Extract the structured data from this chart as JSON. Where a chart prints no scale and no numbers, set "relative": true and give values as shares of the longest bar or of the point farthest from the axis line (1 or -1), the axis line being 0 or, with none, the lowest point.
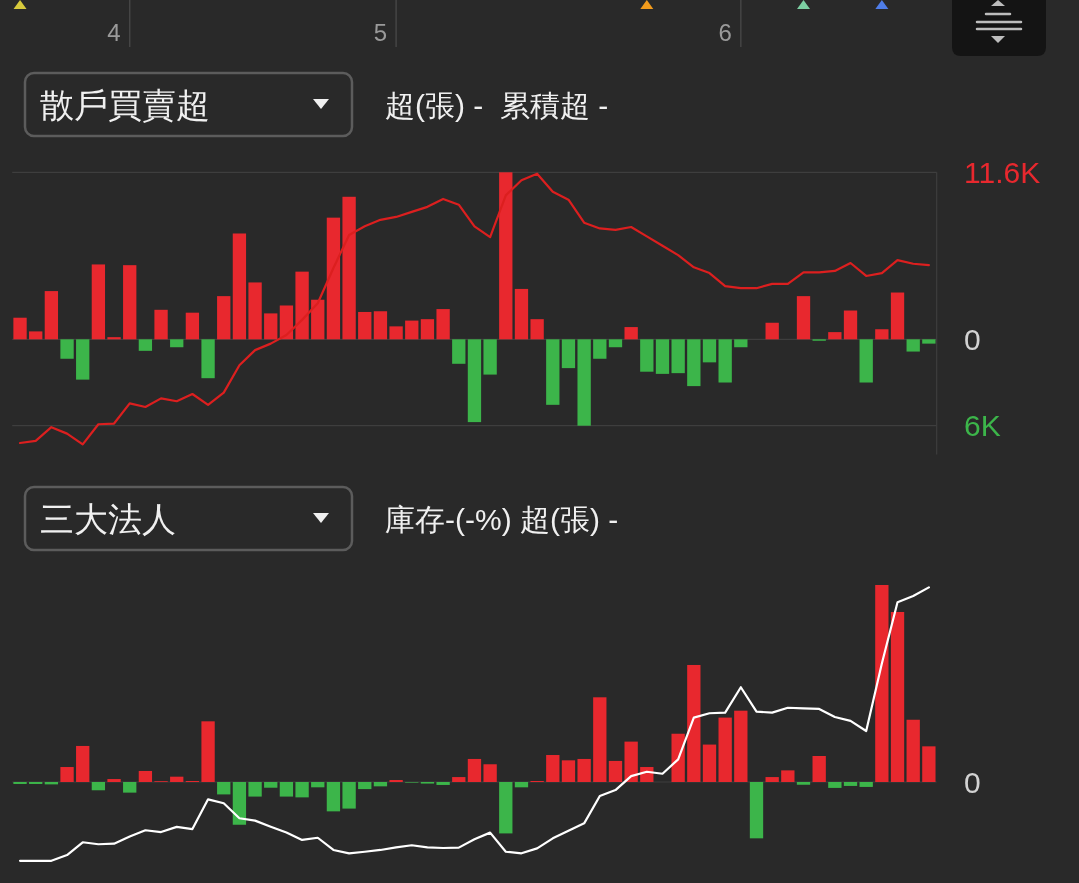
{
  "chart_data": [
    {
      "type": "bar",
      "title": "散戶買賣超",
      "subtitle": "超(張) -  累積超 -",
      "ylim": [
        -8000,
        11600
      ],
      "yticks": [
        {
          "value": 11600,
          "label": "11.6K"
        },
        0,
        {
          "value": -6000,
          "label": "6K"
        }
      ],
      "grid": "y",
      "categories": [
        null,
        null,
        null,
        null,
        null,
        null,
        "4",
        null,
        null,
        null,
        null,
        null,
        null,
        null,
        null,
        null,
        null,
        null,
        null,
        null,
        null,
        null,
        null,
        "5",
        null,
        null,
        null,
        null,
        null,
        null,
        null,
        null,
        null,
        null,
        null,
        null,
        null,
        null,
        null,
        null,
        null,
        null,
        null,
        null,
        null,
        "6",
        null,
        null,
        null,
        null,
        null,
        null,
        null,
        null,
        null,
        null,
        null,
        null,
        null
      ],
      "series": [
        {
          "values": [
            1500,
            550,
            3350,
            -1350,
            -2800,
            5200,
            150,
            5150,
            -800,
            2050,
            -550,
            1850,
            -2700,
            3000,
            7350,
            3950,
            1800,
            2350,
            4700,
            2750,
            8450,
            9900,
            1900,
            1950,
            900,
            1300,
            1400,
            2100,
            -1700,
            -5750,
            -2450,
            11600,
            3500,
            1400,
            -4550,
            -2000,
            -6000,
            -1350,
            -550,
            850,
            -2250,
            -2400,
            -2350,
            -3250,
            -1600,
            -3000,
            -550,
            null,
            1150,
            null,
            3000,
            -100,
            500,
            2000,
            -3000,
            700,
            3250,
            -850,
            -300
          ],
          "colors": [
            "#e8282e",
            "#e8282e",
            "#e8282e",
            "#3cb54a",
            "#3cb54a",
            "#e8282e",
            "#e8282e",
            "#e8282e",
            "#3cb54a",
            "#e8282e",
            "#3cb54a",
            "#e8282e",
            "#3cb54a",
            "#e8282e",
            "#e8282e",
            "#e8282e",
            "#e8282e",
            "#e8282e",
            "#e8282e",
            "#e8282e",
            "#e8282e",
            "#e8282e",
            "#e8282e",
            "#e8282e",
            "#e8282e",
            "#e8282e",
            "#e8282e",
            "#e8282e",
            "#3cb54a",
            "#3cb54a",
            "#3cb54a",
            "#e8282e",
            "#e8282e",
            "#e8282e",
            "#3cb54a",
            "#3cb54a",
            "#3cb54a",
            "#3cb54a",
            "#3cb54a",
            "#e8282e",
            "#3cb54a",
            "#3cb54a",
            "#3cb54a",
            "#3cb54a",
            "#3cb54a",
            "#3cb54a",
            "#3cb54a",
            null,
            "#e8282e",
            null,
            "#e8282e",
            "#3cb54a",
            "#e8282e",
            "#e8282e",
            "#3cb54a",
            "#e8282e",
            "#e8282e",
            "#3cb54a",
            "#3cb54a"
          ]
        },
        {
          "type": "line",
          "color": "#dc1f1f",
          "values": [
            -7200,
            -7050,
            -6100,
            -6550,
            -7300,
            -5900,
            -5850,
            -4450,
            -4700,
            -4100,
            -4300,
            -3800,
            -4550,
            -3700,
            -1800,
            -750,
            -300,
            300,
            1350,
            2500,
            4950,
            7250,
            7850,
            8300,
            8500,
            8850,
            9200,
            9750,
            9350,
            7850,
            7100,
            10000,
            11050,
            11500,
            10250,
            9700,
            8100,
            7700,
            7600,
            7800,
            7150,
            6500,
            5850,
            5000,
            4600,
            3700,
            3550,
            3550,
            3850,
            3850,
            4650,
            4650,
            4750,
            5300,
            4400,
            4600,
            5500,
            5250,
            5150
          ]
        }
      ]
    },
    {
      "type": "bar",
      "title": "三大法人",
      "subtitle": "庫存-(-%) 超(張) -",
      "relative": true,
      "annotations": [
        "0"
      ],
      "categories": [
        null,
        null,
        null,
        null,
        null,
        null,
        null,
        null,
        null,
        null,
        null,
        null,
        null,
        null,
        null,
        null,
        null,
        null,
        null,
        null,
        null,
        null,
        null,
        null,
        null,
        null,
        null,
        null,
        null,
        null,
        null,
        null,
        null,
        null,
        null,
        null,
        null,
        null,
        null,
        null,
        null,
        null,
        null,
        null,
        null,
        null,
        null,
        null,
        null,
        null,
        null,
        null,
        null,
        null,
        null,
        null,
        null,
        null,
        null
      ],
      "series": [
        {
          "values": [
            -0.01,
            -0.01,
            -0.012,
            0.076,
            0.183,
            -0.042,
            0.015,
            -0.054,
            0.056,
            0.004,
            0.027,
            0.005,
            0.308,
            -0.063,
            -0.217,
            -0.074,
            -0.029,
            -0.074,
            -0.078,
            -0.027,
            -0.149,
            -0.135,
            -0.036,
            -0.022,
            0.01,
            -0.003,
            -0.008,
            -0.015,
            0.025,
            0.117,
            0.09,
            -0.261,
            -0.027,
            0.005,
            0.137,
            0.11,
            0.117,
            0.43,
            0.107,
            0.205,
            0.076,
            null,
            0.245,
            0.594,
            0.19,
            0.327,
            0.362,
            -0.286,
            0.025,
            0.059,
            -0.014,
            0.132,
            -0.03,
            -0.02,
            -0.025,
            1,
            0.863,
            0.316,
            0.181
          ],
          "colors": [
            "#3cb54a",
            "#3cb54a",
            "#3cb54a",
            "#e8282e",
            "#e8282e",
            "#3cb54a",
            "#e8282e",
            "#3cb54a",
            "#e8282e",
            "#e8282e",
            "#e8282e",
            "#e8282e",
            "#e8282e",
            "#3cb54a",
            "#3cb54a",
            "#3cb54a",
            "#3cb54a",
            "#3cb54a",
            "#3cb54a",
            "#3cb54a",
            "#3cb54a",
            "#3cb54a",
            "#3cb54a",
            "#3cb54a",
            "#e8282e",
            "#3cb54a",
            "#3cb54a",
            "#3cb54a",
            "#e8282e",
            "#e8282e",
            "#e8282e",
            "#3cb54a",
            "#3cb54a",
            "#e8282e",
            "#e8282e",
            "#e8282e",
            "#e8282e",
            "#e8282e",
            "#e8282e",
            "#e8282e",
            "#e8282e",
            null,
            "#e8282e",
            "#e8282e",
            "#e8282e",
            "#e8282e",
            "#e8282e",
            "#3cb54a",
            "#e8282e",
            "#e8282e",
            "#3cb54a",
            "#e8282e",
            "#3cb54a",
            "#3cb54a",
            "#3cb54a",
            "#e8282e",
            "#e8282e",
            "#e8282e",
            "#e8282e"
          ]
        },
        {
          "type": "line",
          "color": "#ffffff",
          "values": [
            -0.4,
            -0.4,
            -0.4,
            -0.371,
            -0.306,
            -0.316,
            -0.313,
            -0.277,
            -0.245,
            -0.254,
            -0.228,
            -0.239,
            -0.088,
            -0.108,
            -0.184,
            -0.196,
            -0.227,
            -0.256,
            -0.294,
            -0.283,
            -0.345,
            -0.362,
            -0.354,
            -0.345,
            -0.332,
            -0.321,
            -0.332,
            -0.335,
            -0.333,
            -0.291,
            -0.257,
            -0.354,
            -0.362,
            -0.337,
            -0.286,
            -0.247,
            -0.21,
            -0.071,
            -0.041,
            0.03,
            0.052,
            0.042,
            0.115,
            0.327,
            0.349,
            0.352,
            0.481,
            0.357,
            0.352,
            0.377,
            0.374,
            0.371,
            0.33,
            0.31,
            0.259,
            0.601,
            0.912,
            0.944,
            0.988
          ]
        }
      ]
    }
  ]
}
